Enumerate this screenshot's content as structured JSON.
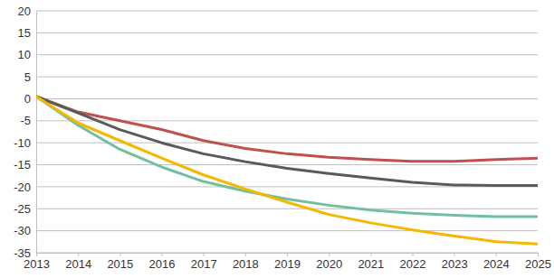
{
  "chart_data": {
    "type": "line",
    "x": [
      2013,
      2014,
      2015,
      2016,
      2017,
      2018,
      2019,
      2020,
      2021,
      2022,
      2023,
      2024,
      2025
    ],
    "xlim": [
      2013,
      2025
    ],
    "xticks": [
      2013,
      2014,
      2015,
      2016,
      2017,
      2018,
      2019,
      2020,
      2021,
      2022,
      2023,
      2024,
      2025
    ],
    "ylim": [
      -35,
      20
    ],
    "yticks": [
      -35,
      -30,
      -25,
      -20,
      -15,
      -10,
      -5,
      0,
      5,
      10,
      15,
      20
    ],
    "grid": true,
    "series": [
      {
        "color": "#c0504d",
        "values": [
          0.5,
          -3,
          -5,
          -7,
          -9.5,
          -11.3,
          -12.5,
          -13.3,
          -13.8,
          -14.2,
          -14.2,
          -13.8,
          -13.5
        ]
      },
      {
        "color": "#5a5a5a",
        "values": [
          0.5,
          -3.2,
          -7,
          -10,
          -12.5,
          -14.3,
          -15.8,
          -17,
          -18,
          -19,
          -19.6,
          -19.7,
          -19.7
        ]
      },
      {
        "color": "#72bf9f",
        "values": [
          0.5,
          -6,
          -11.5,
          -15.5,
          -18.8,
          -21,
          -22.8,
          -24.2,
          -25.3,
          -26,
          -26.5,
          -26.8,
          -26.8
        ]
      },
      {
        "color": "#f5b700",
        "values": [
          0.5,
          -5.5,
          -9.5,
          -13.5,
          -17.3,
          -20.5,
          -23.5,
          -26.3,
          -28.2,
          -29.8,
          -31.2,
          -32.5,
          -33
        ]
      }
    ]
  }
}
